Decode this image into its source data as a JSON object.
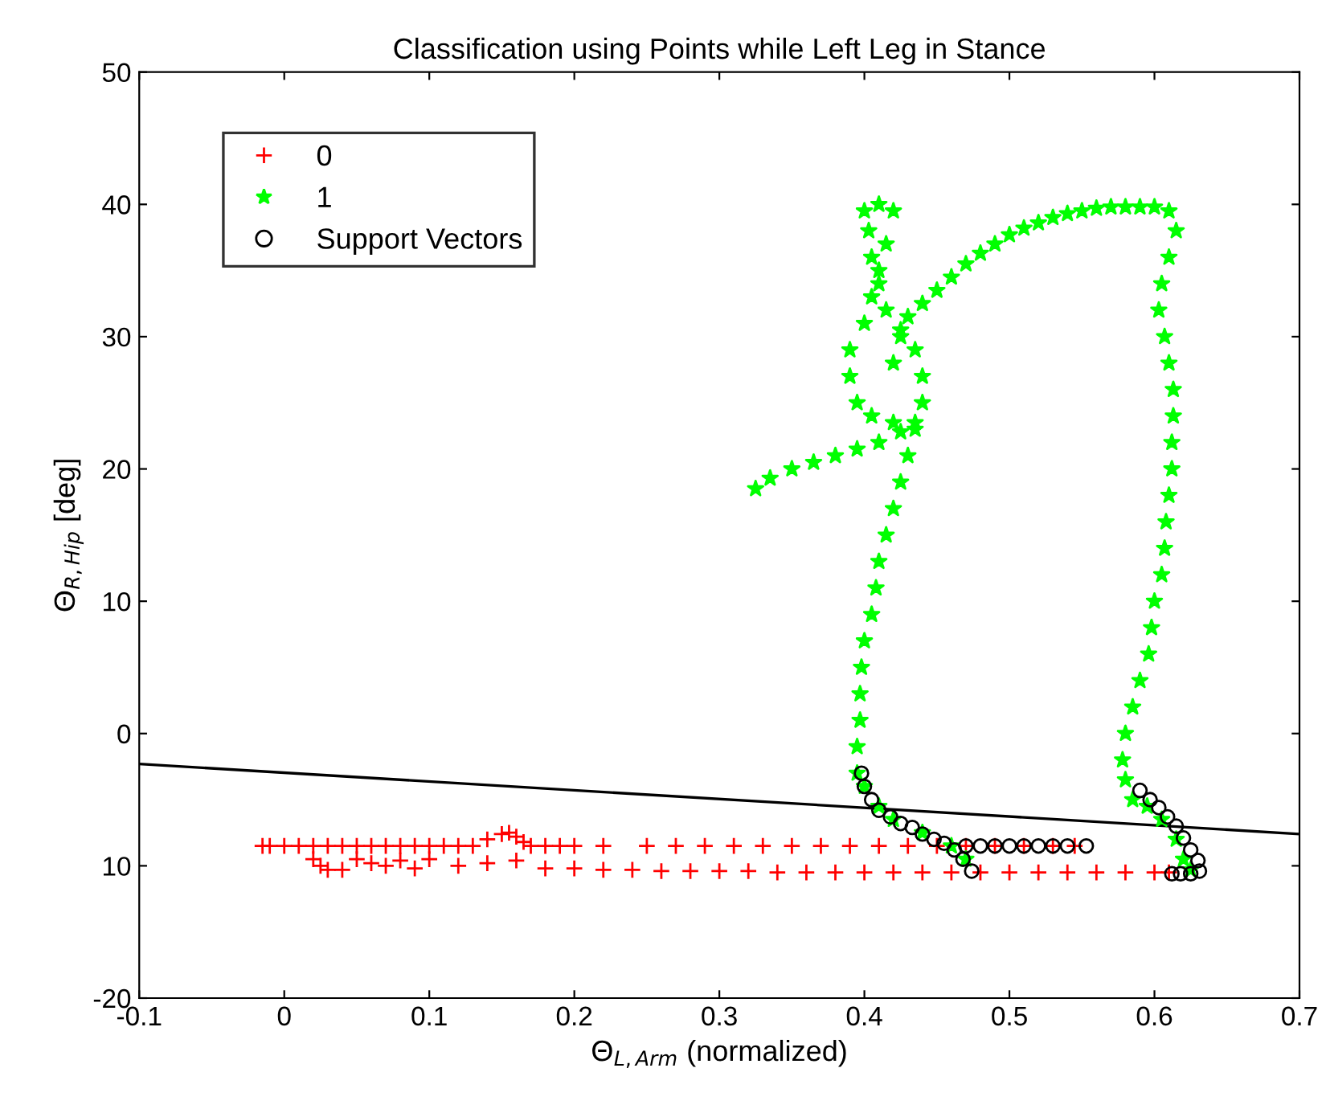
{
  "chart_data": {
    "type": "scatter",
    "title": "Classification using Points while Left Leg in Stance",
    "xlabel": "Θ$_{L,Arm}$ (normalized)",
    "ylabel": "Θ$_{R,Hip}$ [deg]",
    "xlim": [
      -0.1,
      0.7
    ],
    "xticks": [
      -0.1,
      0,
      0.1,
      0.2,
      0.3,
      0.4,
      0.5,
      0.6,
      0.7
    ],
    "ylim": [
      -20,
      50
    ],
    "yticks": [
      {
        "value": -20,
        "label": "-20"
      },
      {
        "value": -10,
        "label": "10"
      },
      0,
      10,
      20,
      30,
      40,
      50
    ],
    "grid": false,
    "legend": "top left",
    "series": [
      {
        "name": "0",
        "color": "#ff0000",
        "marker": "cross",
        "x": [
          -0.015,
          -0.01,
          0.0,
          0.01,
          0.02,
          0.03,
          0.04,
          0.05,
          0.06,
          0.07,
          0.08,
          0.09,
          0.1,
          0.11,
          0.12,
          0.13,
          0.14,
          0.15,
          0.155,
          0.16,
          0.165,
          0.17,
          0.18,
          0.19,
          0.2,
          0.22,
          0.25,
          0.27,
          0.29,
          0.31,
          0.33,
          0.35,
          0.37,
          0.39,
          0.41,
          0.43,
          0.45,
          0.47,
          0.49,
          0.51,
          0.53,
          0.545,
          0.02,
          0.025,
          0.03,
          0.04,
          0.05,
          0.06,
          0.07,
          0.08,
          0.09,
          0.1,
          0.12,
          0.14,
          0.16,
          0.18,
          0.2,
          0.22,
          0.24,
          0.26,
          0.28,
          0.3,
          0.32,
          0.34,
          0.36,
          0.38,
          0.4,
          0.42,
          0.44,
          0.46,
          0.48,
          0.5,
          0.52,
          0.54,
          0.56,
          0.58,
          0.6,
          0.61
        ],
        "values": [
          -8.5,
          -8.5,
          -8.5,
          -8.5,
          -8.5,
          -8.5,
          -8.5,
          -8.5,
          -8.5,
          -8.5,
          -8.5,
          -8.5,
          -8.5,
          -8.5,
          -8.5,
          -8.5,
          -8,
          -7.6,
          -7.5,
          -7.8,
          -8.2,
          -8.5,
          -8.5,
          -8.5,
          -8.5,
          -8.5,
          -8.5,
          -8.5,
          -8.5,
          -8.5,
          -8.5,
          -8.5,
          -8.5,
          -8.5,
          -8.5,
          -8.5,
          -8.5,
          -8.5,
          -8.5,
          -8.5,
          -8.5,
          -8.5,
          -9.5,
          -10,
          -10.3,
          -10.3,
          -9.5,
          -9.8,
          -10,
          -9.6,
          -10.2,
          -9.5,
          -10,
          -9.8,
          -9.6,
          -10.2,
          -10.2,
          -10.3,
          -10.3,
          -10.4,
          -10.4,
          -10.4,
          -10.4,
          -10.5,
          -10.5,
          -10.5,
          -10.5,
          -10.5,
          -10.5,
          -10.5,
          -10.5,
          -10.5,
          -10.5,
          -10.5,
          -10.5,
          -10.5,
          -10.5,
          -10.5
        ]
      },
      {
        "name": "1",
        "color": "#00ff00",
        "marker": "star",
        "x": [
          0.325,
          0.335,
          0.35,
          0.365,
          0.38,
          0.395,
          0.41,
          0.425,
          0.435,
          0.395,
          0.395,
          0.397,
          0.397,
          0.398,
          0.4,
          0.405,
          0.408,
          0.41,
          0.415,
          0.42,
          0.425,
          0.43,
          0.435,
          0.44,
          0.44,
          0.435,
          0.425,
          0.415,
          0.41,
          0.405,
          0.403,
          0.4,
          0.41,
          0.42,
          0.415,
          0.41,
          0.405,
          0.4,
          0.39,
          0.39,
          0.395,
          0.405,
          0.42,
          0.42,
          0.425,
          0.43,
          0.44,
          0.45,
          0.46,
          0.47,
          0.48,
          0.49,
          0.5,
          0.51,
          0.52,
          0.53,
          0.54,
          0.55,
          0.56,
          0.57,
          0.58,
          0.59,
          0.6,
          0.61,
          0.615,
          0.61,
          0.605,
          0.603,
          0.607,
          0.61,
          0.613,
          0.613,
          0.612,
          0.612,
          0.61,
          0.608,
          0.607,
          0.605,
          0.6,
          0.598,
          0.596,
          0.59,
          0.585,
          0.58,
          0.578,
          0.58,
          0.585,
          0.4,
          0.41,
          0.42,
          0.44,
          0.46,
          0.47,
          0.595,
          0.605,
          0.615,
          0.62,
          0.625
        ],
        "values": [
          18.5,
          19.3,
          20,
          20.5,
          21,
          21.5,
          22,
          22.8,
          23.5,
          -3,
          -1,
          1,
          3,
          5,
          7,
          9,
          11,
          13,
          15,
          17,
          19,
          21,
          23,
          25,
          27,
          29,
          30.5,
          32,
          34,
          36,
          38,
          39.5,
          40,
          39.5,
          37,
          35,
          33,
          31,
          29,
          27,
          25,
          24,
          23.5,
          28,
          30,
          31.5,
          32.5,
          33.5,
          34.5,
          35.5,
          36.3,
          37,
          37.7,
          38.2,
          38.6,
          39,
          39.3,
          39.5,
          39.7,
          39.8,
          39.8,
          39.8,
          39.8,
          39.5,
          38,
          36,
          34,
          32,
          30,
          28,
          26,
          24,
          22,
          20,
          18,
          16,
          14,
          12,
          10,
          8,
          6,
          4,
          2,
          0,
          -2,
          -3.5,
          -5,
          -4,
          -5.5,
          -6.5,
          -7.5,
          -8.5,
          -9.5,
          -5.5,
          -6.5,
          -8,
          -9.5,
          -10.3
        ]
      },
      {
        "name": "Support Vectors",
        "color": "#000000",
        "marker": "circle",
        "x": [
          0.398,
          0.4,
          0.405,
          0.41,
          0.418,
          0.425,
          0.433,
          0.44,
          0.448,
          0.455,
          0.462,
          0.468,
          0.474,
          0.47,
          0.48,
          0.49,
          0.5,
          0.51,
          0.52,
          0.53,
          0.54,
          0.553,
          0.59,
          0.597,
          0.603,
          0.609,
          0.615,
          0.62,
          0.625,
          0.63,
          0.631,
          0.625,
          0.618,
          0.612
        ],
        "values": [
          -3,
          -4,
          -5,
          -5.8,
          -6.3,
          -6.8,
          -7.1,
          -7.6,
          -8,
          -8.3,
          -8.8,
          -9.5,
          -10.4,
          -8.5,
          -8.5,
          -8.5,
          -8.5,
          -8.5,
          -8.5,
          -8.5,
          -8.5,
          -8.5,
          -4.3,
          -5,
          -5.6,
          -6.3,
          -7,
          -7.9,
          -8.8,
          -9.6,
          -10.4,
          -10.6,
          -10.6,
          -10.6
        ]
      },
      {
        "type": "line",
        "color": "#000000",
        "marker": "none",
        "x": [
          -0.1,
          0.7
        ],
        "values": [
          -2.3,
          -7.6
        ]
      }
    ]
  }
}
